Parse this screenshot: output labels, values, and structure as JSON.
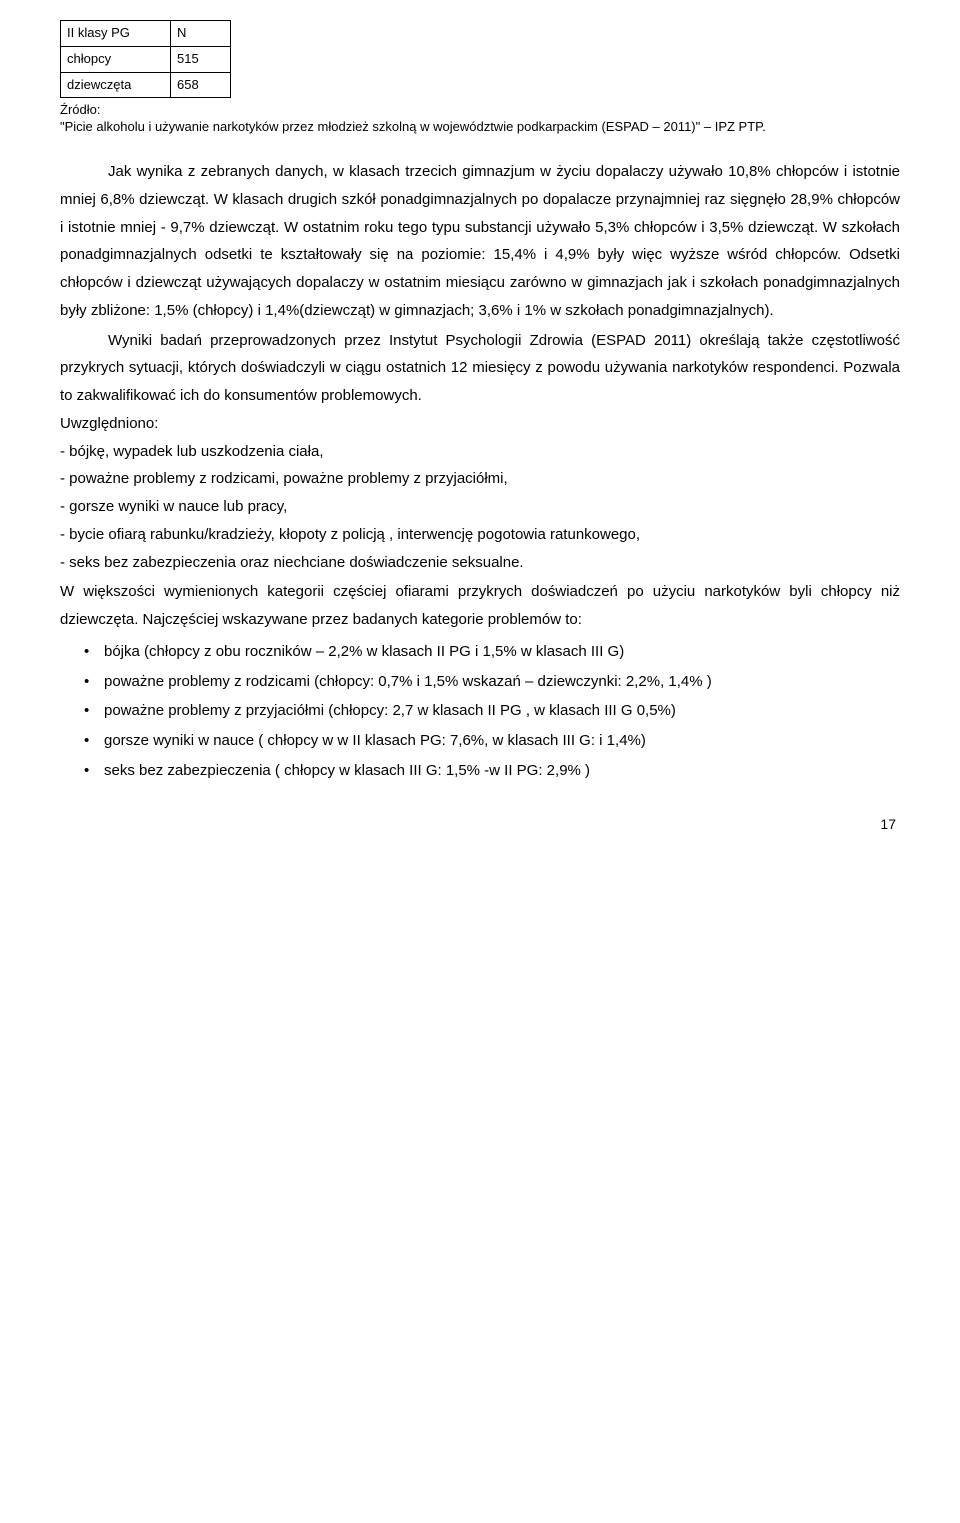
{
  "table": {
    "rows": [
      {
        "label": "II klasy PG",
        "value": "N"
      },
      {
        "label": "chłopcy",
        "value": "515"
      },
      {
        "label": "dziewczęta",
        "value": "658"
      }
    ]
  },
  "source": {
    "line1": "Źródło:",
    "line2": "\"Picie alkoholu i używanie narkotyków przez młodzież szkolną w województwie podkarpackim (ESPAD – 2011)\" – IPZ PTP."
  },
  "para1": "Jak wynika z zebranych danych, w klasach trzecich gimnazjum w życiu dopalaczy używało 10,8% chłopców i istotnie mniej 6,8% dziewcząt. W klasach drugich szkół ponadgimnazjalnych po dopalacze przynajmniej raz sięgnęło 28,9% chłopców i istotnie mniej - 9,7% dziewcząt. W ostatnim roku tego typu substancji używało 5,3% chłopców i 3,5% dziewcząt. W szkołach ponadgimnazjalnych odsetki te kształtowały się na poziomie: 15,4% i 4,9% były więc wyższe wśród chłopców. Odsetki chłopców i dziewcząt używających dopalaczy w ostatnim miesiącu  zarówno w  gimnazjach jak i  szkołach ponadgimnazjalnych były zbliżone: 1,5% (chłopcy) i 1,4%(dziewcząt)  w gimnazjach; 3,6% i 1%  w szkołach ponadgimnazjalnych).",
  "para2": "Wyniki badań przeprowadzonych przez Instytut Psychologii Zdrowia (ESPAD 2011) określają także częstotliwość przykrych sytuacji, których doświadczyli w ciągu ostatnich 12 miesięcy z powodu używania narkotyków respondenci. Pozwala to zakwalifikować ich do konsumentów problemowych.",
  "uwz": "Uwzględniono:",
  "lines": [
    "- bójkę, wypadek lub uszkodzenia ciała,",
    "- poważne problemy z rodzicami, poważne problemy z przyjaciółmi,",
    "- gorsze wyniki w nauce lub pracy,",
    "- bycie ofiarą rabunku/kradzieży, kłopoty z policją , interwencję pogotowia ratunkowego,",
    "- seks bez zabezpieczenia oraz niechciane doświadczenie seksualne."
  ],
  "para3": "W większości wymienionych kategorii częściej ofiarami przykrych doświadczeń po użyciu narkotyków byli chłopcy niż dziewczęta. Najczęściej wskazywane przez badanych kategorie problemów to:",
  "bullets": [
    "bójka (chłopcy z obu roczników – 2,2% w klasach II PG i 1,5% w klasach III G)",
    "poważne problemy z rodzicami (chłopcy: 0,7% i 1,5% wskazań – dziewczynki: 2,2%, 1,4% )",
    "poważne problemy z przyjaciółmi (chłopcy:  2,7 w klasach II PG , w klasach III G 0,5%)",
    "gorsze wyniki w nauce ( chłopcy w w II klasach PG: 7,6%, w klasach III G: i 1,4%)",
    "seks bez zabezpieczenia ( chłopcy w klasach III G: 1,5% -w II PG: 2,9% )"
  ],
  "page_number": "17"
}
